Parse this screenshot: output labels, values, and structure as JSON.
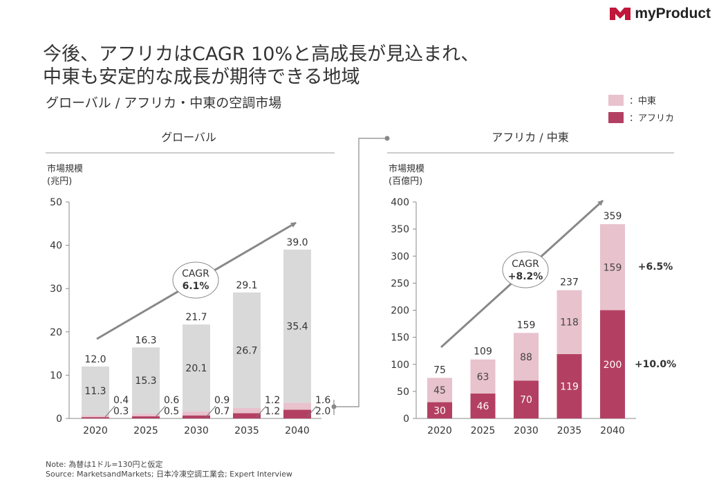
{
  "brand": {
    "logo_text": "myProduct",
    "logo_color": "#c0173a"
  },
  "title": {
    "line1": "今後、アフリカはCAGR 10%と高成長が見込まれ、",
    "line2": "中東も安定的な成長が期待できる地域",
    "subtitle": "グローバル / アフリカ・中東の空調市場"
  },
  "legend": [
    {
      "label": "：中東",
      "color": "#e8c2cd"
    },
    {
      "label": "：アフリカ",
      "color": "#b34062"
    }
  ],
  "footnote": {
    "line1": "Note: 為替は1ドル=130円と仮定",
    "line2": "Source: MarketsandMarkets; 日本冷凍空調工業会;  Expert Interview"
  },
  "chart_data": [
    {
      "type": "bar",
      "title": "グローバル",
      "ylabel_line1": "市場規模",
      "ylabel_line2": "(兆円)",
      "ylim": [
        0,
        50
      ],
      "yticks": [
        0,
        10,
        20,
        30,
        40,
        50
      ],
      "categories": [
        "2020",
        "2025",
        "2030",
        "2035",
        "2040"
      ],
      "totals": [
        "12.0",
        "16.3",
        "21.7",
        "29.1",
        "39.0"
      ],
      "series": [
        {
          "name": "アフリカ",
          "values": [
            0.3,
            0.5,
            0.7,
            1.2,
            2.0
          ],
          "labels": [
            "0.3",
            "0.5",
            "0.7",
            "1.2",
            "2.0"
          ],
          "color": "#b34062"
        },
        {
          "name": "中東",
          "values": [
            0.4,
            0.6,
            0.9,
            1.2,
            1.6
          ],
          "labels": [
            "0.4",
            "0.6",
            "0.9",
            "1.2",
            "1.6"
          ],
          "color": "#e8c2cd"
        },
        {
          "values": [
            11.3,
            15.3,
            20.1,
            26.7,
            35.4
          ],
          "labels": [
            "11.3",
            "15.3",
            "20.1",
            "26.7",
            "35.4"
          ],
          "color": "#d9d9d9"
        }
      ],
      "cagr": {
        "label": "CAGR",
        "value": "6.1%"
      }
    },
    {
      "type": "bar",
      "title": "アフリカ / 中東",
      "ylabel_line1": "市場規模",
      "ylabel_line2": "(百億円)",
      "ylim": [
        0,
        400
      ],
      "yticks": [
        0,
        50,
        100,
        150,
        200,
        250,
        300,
        350,
        400
      ],
      "categories": [
        "2020",
        "2025",
        "2030",
        "2035",
        "2040"
      ],
      "totals": [
        "75",
        "109",
        "159",
        "237",
        "359"
      ],
      "series": [
        {
          "name": "アフリカ",
          "values": [
            30,
            46,
            70,
            119,
            200
          ],
          "labels": [
            "30",
            "46",
            "70",
            "119",
            "200"
          ],
          "color": "#b34062",
          "cagr": "+10.0%"
        },
        {
          "name": "中東",
          "values": [
            45,
            63,
            88,
            118,
            159
          ],
          "labels": [
            "45",
            "63",
            "88",
            "118",
            "159"
          ],
          "color": "#e8c2cd",
          "cagr": "+6.5%"
        }
      ],
      "cagr": {
        "label": "CAGR",
        "value": "+8.2%"
      }
    }
  ]
}
